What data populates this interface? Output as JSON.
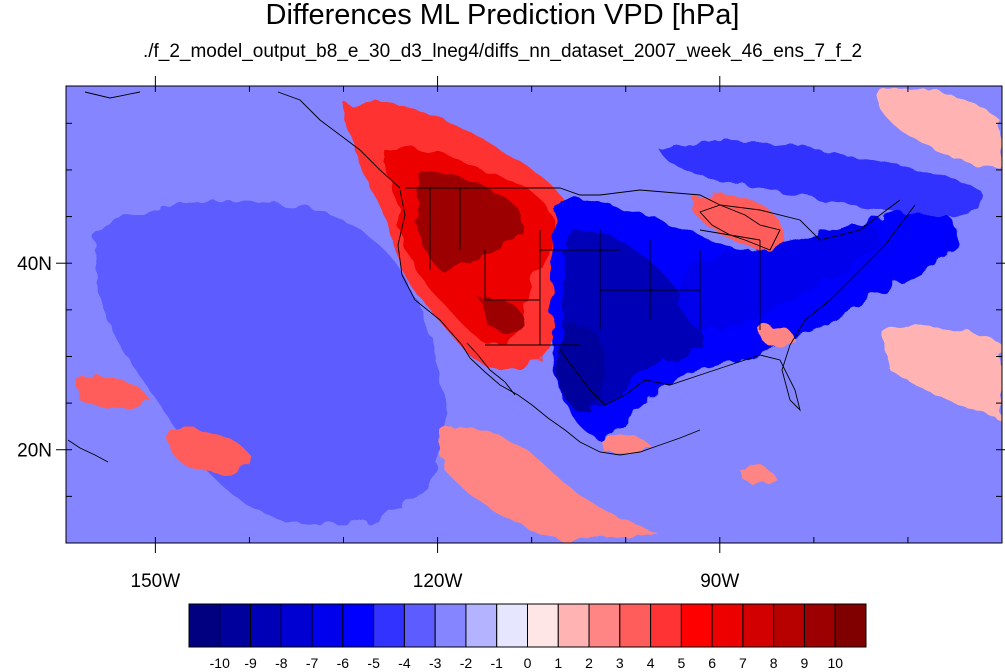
{
  "title": "Differences ML Prediction VPD [hPa]",
  "subtitle": "./f_2_model_output_b8_e_30_d3_lneg4/diffs_nn_dataset_2007_week_46_ens_7_f_2",
  "lon_ticks": [
    {
      "lon": -150,
      "label": "150W"
    },
    {
      "lon": -120,
      "label": "120W"
    },
    {
      "lon": -90,
      "label": "90W"
    }
  ],
  "lat_ticks": [
    {
      "lat": 40,
      "label": "40N"
    },
    {
      "lat": 20,
      "label": "20N"
    }
  ],
  "colorbar": {
    "labels": [
      "-10",
      "-9",
      "-8",
      "-7",
      "-6",
      "-5",
      "-4",
      "-3",
      "-2",
      "-1",
      "0",
      "1",
      "2",
      "3",
      "4",
      "5",
      "6",
      "7",
      "8",
      "9",
      "10"
    ],
    "colors": [
      "#000080",
      "#00009c",
      "#0000b7",
      "#0000d2",
      "#0000ed",
      "#0000ff",
      "#3333ff",
      "#5c5cff",
      "#8585ff",
      "#b3b3ff",
      "#e6e6ff",
      "#ffe6e6",
      "#ffb3b3",
      "#ff8585",
      "#ff5c5c",
      "#ff3333",
      "#ff0000",
      "#ed0000",
      "#d20000",
      "#b70000",
      "#9c0000",
      "#800000"
    ]
  },
  "map_data": {
    "extent": {
      "lon_min": -159.5,
      "lon_max": -60,
      "lat_min": 10,
      "lat_max": 59
    },
    "background_value": -1,
    "regions": [
      {
        "name": "pacific-blue-core",
        "value": -5
      },
      {
        "name": "pacific-blue-mid",
        "value": -4
      },
      {
        "name": "pacific-blue-outer",
        "value": -3
      },
      {
        "name": "pacific-blue-broad",
        "value": -2
      },
      {
        "name": "west-us-red-outer",
        "value": 4
      },
      {
        "name": "west-us-red-mid",
        "value": 6
      },
      {
        "name": "west-us-red-core",
        "value": 9
      },
      {
        "name": "central-us-blue-outer",
        "value": -4
      },
      {
        "name": "central-us-blue-core",
        "value": -7
      },
      {
        "name": "east-us-blue",
        "value": -5
      },
      {
        "name": "texas-blue-core",
        "value": -8
      },
      {
        "name": "gulf-red",
        "value": 2
      },
      {
        "name": "great-lakes-red",
        "value": 3
      },
      {
        "name": "canada-blue",
        "value": -3
      },
      {
        "name": "subtropical-pacific-red",
        "value": 3
      },
      {
        "name": "eastern-pacific-red",
        "value": 2
      },
      {
        "name": "atlantic-red",
        "value": 1
      }
    ]
  }
}
